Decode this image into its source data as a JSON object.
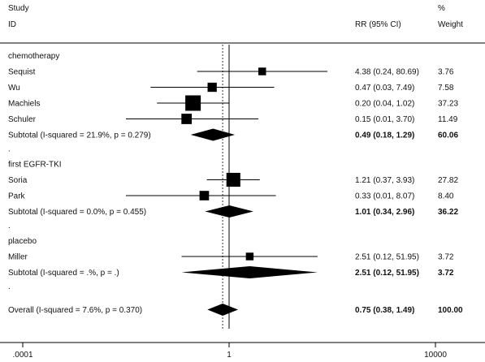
{
  "chart_data": {
    "type": "forest",
    "headers": {
      "study_line1": "Study",
      "study_line2": "ID",
      "rr": "RR (95% CI)",
      "weight_line1": "%",
      "weight_line2": "Weight"
    },
    "x_scale": "log",
    "x_ticks": [
      {
        "value": 0.0001,
        "label": ".0001"
      },
      {
        "value": 1,
        "label": "1"
      },
      {
        "value": 10000,
        "label": "10000"
      }
    ],
    "null_line": 1,
    "overall_line": 0.75,
    "groups": [
      {
        "name": "chemotherapy",
        "studies": [
          {
            "label": "Sequist",
            "rr": 4.38,
            "lo": 0.24,
            "hi": 80.69,
            "ci_text": "4.38 (0.24, 80.69)",
            "weight": "3.76"
          },
          {
            "label": "Wu",
            "rr": 0.47,
            "lo": 0.03,
            "hi": 7.49,
            "ci_text": "0.47 (0.03, 7.49)",
            "weight": "7.58"
          },
          {
            "label": "Machiels",
            "rr": 0.2,
            "lo": 0.04,
            "hi": 1.02,
            "ci_text": "0.20 (0.04, 1.02)",
            "weight": "37.23"
          },
          {
            "label": "Schuler",
            "rr": 0.15,
            "lo": 0.01,
            "hi": 3.7,
            "ci_text": "0.15 (0.01, 3.70)",
            "weight": "11.49"
          }
        ],
        "subtotal": {
          "label": "Subtotal  (I-squared = 21.9%, p = 0.279)",
          "rr": 0.49,
          "lo": 0.18,
          "hi": 1.29,
          "ci_text": "0.49 (0.18, 1.29)",
          "weight": "60.06"
        }
      },
      {
        "name": "first EGFR-TKI",
        "studies": [
          {
            "label": "Soria",
            "rr": 1.21,
            "lo": 0.37,
            "hi": 3.93,
            "ci_text": "1.21 (0.37, 3.93)",
            "weight": "27.82"
          },
          {
            "label": "Park",
            "rr": 0.33,
            "lo": 0.01,
            "hi": 8.07,
            "ci_text": "0.33 (0.01, 8.07)",
            "weight": "8.40"
          }
        ],
        "subtotal": {
          "label": "Subtotal  (I-squared = 0.0%, p = 0.455)",
          "rr": 1.01,
          "lo": 0.34,
          "hi": 2.96,
          "ci_text": "1.01 (0.34, 2.96)",
          "weight": "36.22"
        }
      },
      {
        "name": "placebo",
        "studies": [
          {
            "label": "Miller",
            "rr": 2.51,
            "lo": 0.12,
            "hi": 51.95,
            "ci_text": "2.51 (0.12, 51.95)",
            "weight": "3.72"
          }
        ],
        "subtotal": {
          "label": "Subtotal  (I-squared = .%, p = .)",
          "rr": 2.51,
          "lo": 0.12,
          "hi": 51.95,
          "ci_text": "2.51 (0.12, 51.95)",
          "weight": "3.72"
        }
      }
    ],
    "separator": ".",
    "overall": {
      "label": "Overall  (I-squared = 7.6%, p = 0.370)",
      "rr": 0.75,
      "lo": 0.38,
      "hi": 1.49,
      "ci_text": "0.75 (0.38, 1.49)",
      "weight": "100.00"
    }
  }
}
